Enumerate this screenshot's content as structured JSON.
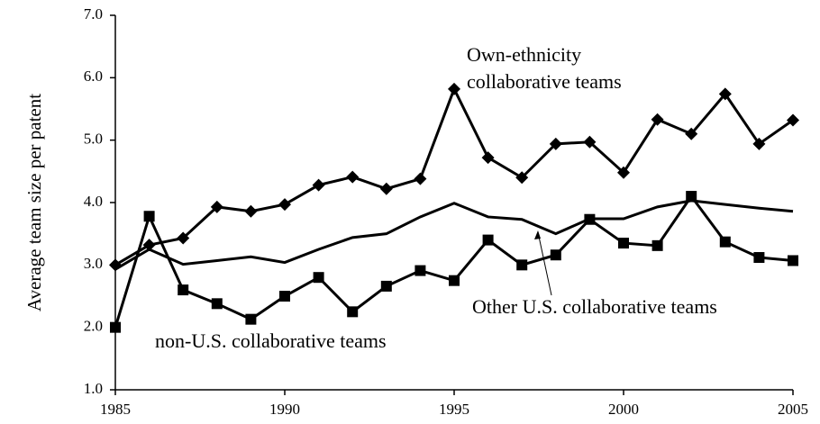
{
  "chart_data": {
    "type": "line",
    "y_label": "Average team size per patent",
    "x": [
      1985,
      1986,
      1987,
      1988,
      1989,
      1990,
      1991,
      1992,
      1993,
      1994,
      1995,
      1996,
      1997,
      1998,
      1999,
      2000,
      2001,
      2002,
      2003,
      2004,
      2005
    ],
    "xlim": [
      1985,
      2005
    ],
    "xticks": [
      1985,
      1990,
      1995,
      2000,
      2005
    ],
    "ylim": [
      1,
      7
    ],
    "yticks": [
      {
        "value": 1,
        "label": "1.0"
      },
      {
        "value": 2,
        "label": "2.0"
      },
      {
        "value": 3,
        "label": "3.0"
      },
      {
        "value": 4,
        "label": "4.0"
      },
      {
        "value": 5,
        "label": "5.0"
      },
      {
        "value": 6,
        "label": "6.0"
      },
      {
        "value": 7,
        "label": "7.0"
      }
    ],
    "grid": false,
    "series": [
      {
        "name": "Own-ethnicity collaborative teams",
        "color": "#000000",
        "marker": "diamond",
        "values": [
          3.0,
          3.32,
          3.43,
          3.93,
          3.86,
          3.97,
          4.28,
          4.41,
          4.22,
          4.38,
          5.82,
          4.72,
          4.4,
          4.94,
          4.97,
          4.48,
          5.33,
          5.1,
          5.74,
          4.94,
          5.32
        ]
      },
      {
        "name": "Other U.S. collaborative teams",
        "color": "#000000",
        "marker": "none",
        "values": [
          2.93,
          3.25,
          3.01,
          3.07,
          3.13,
          3.04,
          3.25,
          3.44,
          3.5,
          3.77,
          3.99,
          3.77,
          3.73,
          3.5,
          3.74,
          3.74,
          3.93,
          4.03,
          3.97,
          3.91,
          3.86
        ]
      },
      {
        "name": "non-U.S. collaborative teams",
        "color": "#000000",
        "marker": "square",
        "values": [
          2.0,
          3.78,
          2.6,
          2.38,
          2.13,
          2.5,
          2.8,
          2.25,
          2.66,
          2.91,
          2.75,
          3.4,
          3.0,
          3.16,
          3.73,
          3.35,
          3.31,
          4.1,
          3.37,
          3.12,
          3.07
        ]
      }
    ]
  }
}
